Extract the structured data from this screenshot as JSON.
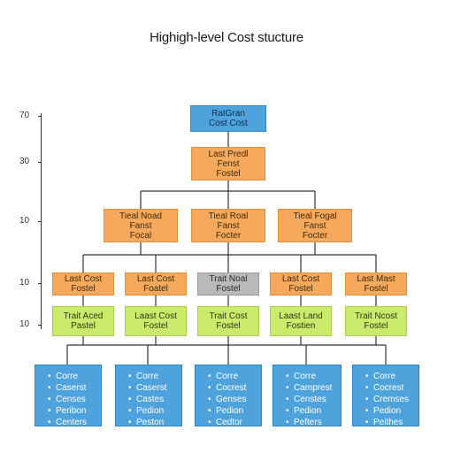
{
  "title": "Highigh-level Cost stucture",
  "axis": {
    "ticks": [
      "70",
      "30",
      "10",
      "10",
      "10"
    ]
  },
  "nodes": {
    "root": {
      "lines": [
        "RatGran",
        "Cost Cost"
      ]
    },
    "level1": {
      "lines": [
        "Last Predl",
        "Fenst",
        "Fostel"
      ]
    },
    "level2": [
      {
        "lines": [
          "Tieal Noad",
          "Fanst",
          "Focal"
        ]
      },
      {
        "lines": [
          "Tieal Roal",
          "Fanst",
          "Focter"
        ]
      },
      {
        "lines": [
          "Tieal Fogal",
          "Fanst",
          "Focter"
        ]
      }
    ],
    "level3": [
      {
        "lines": [
          "Last Cost",
          "Fostel"
        ]
      },
      {
        "lines": [
          "Last Cost",
          "Foatel"
        ]
      },
      {
        "lines": [
          "Trait Noal",
          "Fostel"
        ]
      },
      {
        "lines": [
          "Last Cost",
          "Fostel"
        ]
      },
      {
        "lines": [
          "Last Mast",
          "Fostel"
        ]
      }
    ],
    "level4": [
      {
        "lines": [
          "Trait Aced",
          "Pastel"
        ]
      },
      {
        "lines": [
          "Laast Cost",
          "Fostel"
        ]
      },
      {
        "lines": [
          "Trait Cost",
          "Fostel"
        ]
      },
      {
        "lines": [
          "Laast Land",
          "Fostien"
        ]
      },
      {
        "lines": [
          "Trait Ncost",
          "Fostel"
        ]
      }
    ],
    "leaves": [
      {
        "items": [
          "Corre",
          "Caserst",
          "Censes",
          "Peribon",
          "Centers"
        ]
      },
      {
        "items": [
          "Corre",
          "Caserst",
          "Castes",
          "Pedion",
          "Peston"
        ]
      },
      {
        "items": [
          "Corre",
          "Cocrest",
          "Genses",
          "Pedion",
          "Cedtor"
        ]
      },
      {
        "items": [
          "Corre",
          "Camprest",
          "Censtes",
          "Pedion",
          "Pefters"
        ]
      },
      {
        "items": [
          "Corre",
          "Cocrest",
          "Cremses",
          "Pedion",
          "Peithes"
        ]
      }
    ]
  },
  "colors": {
    "orange": "#f6a95a",
    "blue": "#4fa3dd",
    "green": "#c9ea6b",
    "gray": "#b9b9b9",
    "line": "#333333"
  }
}
